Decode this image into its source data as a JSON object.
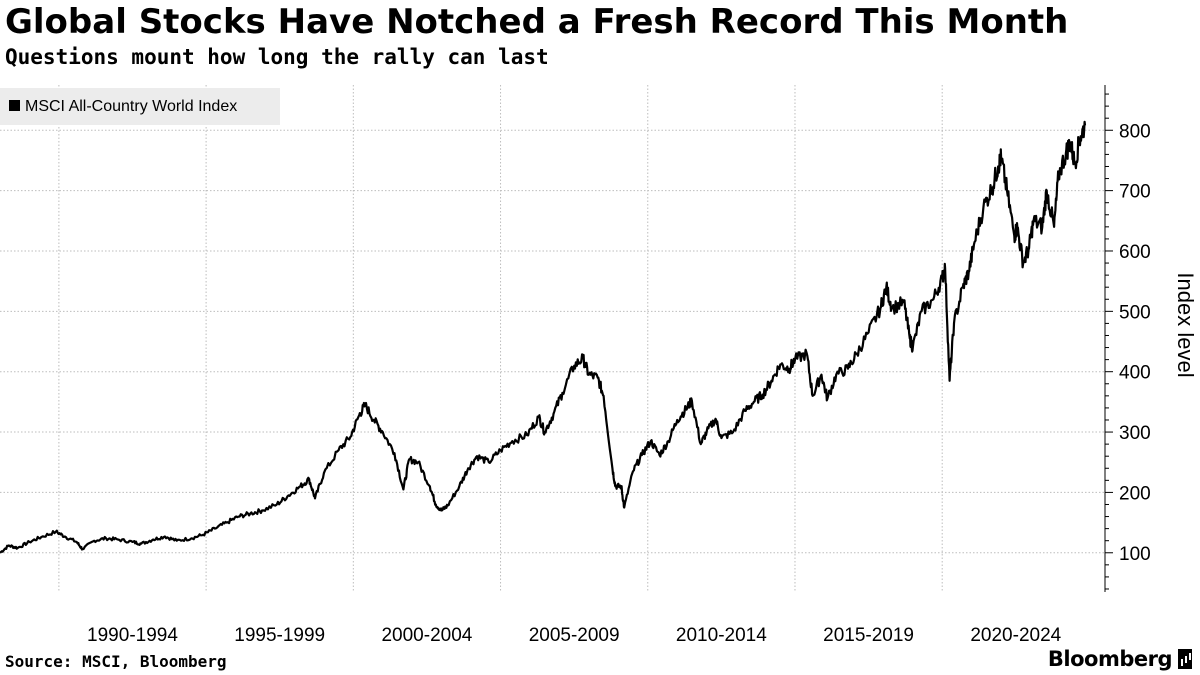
{
  "header": {
    "title": "Global Stocks Have Notched a Fresh Record This Month",
    "subtitle": "Questions mount how long the rally can last"
  },
  "footer": {
    "source": "Source: MSCI, Bloomberg",
    "brand": "Bloomberg"
  },
  "chart_data": {
    "type": "line",
    "title": "Global Stocks Have Notched a Fresh Record This Month",
    "subtitle": "Questions mount how long the rally can last",
    "xlabel": "",
    "ylabel": "Index level",
    "legend": [
      "MSCI All-Country World Index"
    ],
    "legend_position": "top-left",
    "y_axis_side": "right",
    "ylim": [
      35,
      875
    ],
    "xlim": [
      1988.0,
      2024.85
    ],
    "y_ticks": [
      100,
      200,
      300,
      400,
      500,
      600,
      700,
      800
    ],
    "x_tick_labels": [
      {
        "label": "1990-1994",
        "center": 1992.5
      },
      {
        "label": "1995-1999",
        "center": 1997.5
      },
      {
        "label": "2000-2004",
        "center": 2002.5
      },
      {
        "label": "2005-2009",
        "center": 2007.5
      },
      {
        "label": "2010-2014",
        "center": 2012.5
      },
      {
        "label": "2015-2019",
        "center": 2017.5
      },
      {
        "label": "2020-2024",
        "center": 2022.5
      }
    ],
    "x_gridlines": [
      1990,
      1995,
      2000,
      2005,
      2010,
      2015,
      2020
    ],
    "grid": true,
    "series": [
      {
        "name": "MSCI All-Country World Index",
        "color": "#000000",
        "points": [
          [
            1988.0,
            100
          ],
          [
            1988.3,
            112
          ],
          [
            1988.6,
            108
          ],
          [
            1989.0,
            118
          ],
          [
            1989.4,
            126
          ],
          [
            1989.9,
            135
          ],
          [
            1990.2,
            127
          ],
          [
            1990.6,
            118
          ],
          [
            1990.8,
            106
          ],
          [
            1991.2,
            120
          ],
          [
            1991.6,
            124
          ],
          [
            1992.0,
            122
          ],
          [
            1992.5,
            118
          ],
          [
            1992.8,
            115
          ],
          [
            1993.2,
            122
          ],
          [
            1993.6,
            127
          ],
          [
            1994.0,
            120
          ],
          [
            1994.5,
            124
          ],
          [
            1994.9,
            130
          ],
          [
            1995.3,
            140
          ],
          [
            1995.7,
            150
          ],
          [
            1996.1,
            160
          ],
          [
            1996.5,
            165
          ],
          [
            1996.9,
            170
          ],
          [
            1997.4,
            180
          ],
          [
            1997.8,
            195
          ],
          [
            1998.2,
            210
          ],
          [
            1998.5,
            222
          ],
          [
            1998.7,
            190
          ],
          [
            1999.0,
            232
          ],
          [
            1999.5,
            270
          ],
          [
            1999.9,
            292
          ],
          [
            2000.2,
            328
          ],
          [
            2000.4,
            345
          ],
          [
            2000.7,
            320
          ],
          [
            2001.0,
            300
          ],
          [
            2001.4,
            265
          ],
          [
            2001.7,
            205
          ],
          [
            2001.9,
            255
          ],
          [
            2002.2,
            250
          ],
          [
            2002.6,
            210
          ],
          [
            2002.8,
            180
          ],
          [
            2003.0,
            170
          ],
          [
            2003.2,
            178
          ],
          [
            2003.6,
            210
          ],
          [
            2003.9,
            240
          ],
          [
            2004.2,
            260
          ],
          [
            2004.6,
            250
          ],
          [
            2005.0,
            270
          ],
          [
            2005.4,
            285
          ],
          [
            2005.9,
            295
          ],
          [
            2006.3,
            325
          ],
          [
            2006.5,
            300
          ],
          [
            2006.8,
            330
          ],
          [
            2007.1,
            365
          ],
          [
            2007.5,
            410
          ],
          [
            2007.8,
            422
          ],
          [
            2008.0,
            395
          ],
          [
            2008.3,
            390
          ],
          [
            2008.5,
            360
          ],
          [
            2008.8,
            240
          ],
          [
            2008.9,
            210
          ],
          [
            2009.1,
            210
          ],
          [
            2009.2,
            175
          ],
          [
            2009.5,
            235
          ],
          [
            2009.8,
            262
          ],
          [
            2010.1,
            285
          ],
          [
            2010.4,
            262
          ],
          [
            2010.7,
            285
          ],
          [
            2011.0,
            320
          ],
          [
            2011.3,
            338
          ],
          [
            2011.5,
            352
          ],
          [
            2011.8,
            280
          ],
          [
            2012.0,
            300
          ],
          [
            2012.3,
            322
          ],
          [
            2012.5,
            290
          ],
          [
            2012.9,
            300
          ],
          [
            2013.3,
            335
          ],
          [
            2013.6,
            350
          ],
          [
            2013.9,
            362
          ],
          [
            2014.2,
            385
          ],
          [
            2014.5,
            412
          ],
          [
            2014.8,
            405
          ],
          [
            2015.0,
            420
          ],
          [
            2015.4,
            430
          ],
          [
            2015.6,
            360
          ],
          [
            2015.9,
            395
          ],
          [
            2016.1,
            355
          ],
          [
            2016.4,
            395
          ],
          [
            2016.8,
            405
          ],
          [
            2017.1,
            430
          ],
          [
            2017.5,
            465
          ],
          [
            2017.9,
            505
          ],
          [
            2018.1,
            540
          ],
          [
            2018.3,
            505
          ],
          [
            2018.7,
            515
          ],
          [
            2018.9,
            455
          ],
          [
            2019.0,
            440
          ],
          [
            2019.3,
            500
          ],
          [
            2019.7,
            520
          ],
          [
            2020.0,
            555
          ],
          [
            2020.1,
            572
          ],
          [
            2020.25,
            385
          ],
          [
            2020.4,
            480
          ],
          [
            2020.7,
            540
          ],
          [
            2020.9,
            565
          ],
          [
            2021.1,
            615
          ],
          [
            2021.4,
            672
          ],
          [
            2021.7,
            705
          ],
          [
            2021.9,
            740
          ],
          [
            2022.0,
            755
          ],
          [
            2022.2,
            700
          ],
          [
            2022.45,
            625
          ],
          [
            2022.55,
            640
          ],
          [
            2022.75,
            580
          ],
          [
            2022.95,
            605
          ],
          [
            2023.1,
            650
          ],
          [
            2023.4,
            640
          ],
          [
            2023.55,
            700
          ],
          [
            2023.8,
            640
          ],
          [
            2023.95,
            725
          ],
          [
            2024.2,
            762
          ],
          [
            2024.35,
            780
          ],
          [
            2024.5,
            745
          ],
          [
            2024.7,
            790
          ],
          [
            2024.85,
            808
          ]
        ]
      }
    ]
  }
}
